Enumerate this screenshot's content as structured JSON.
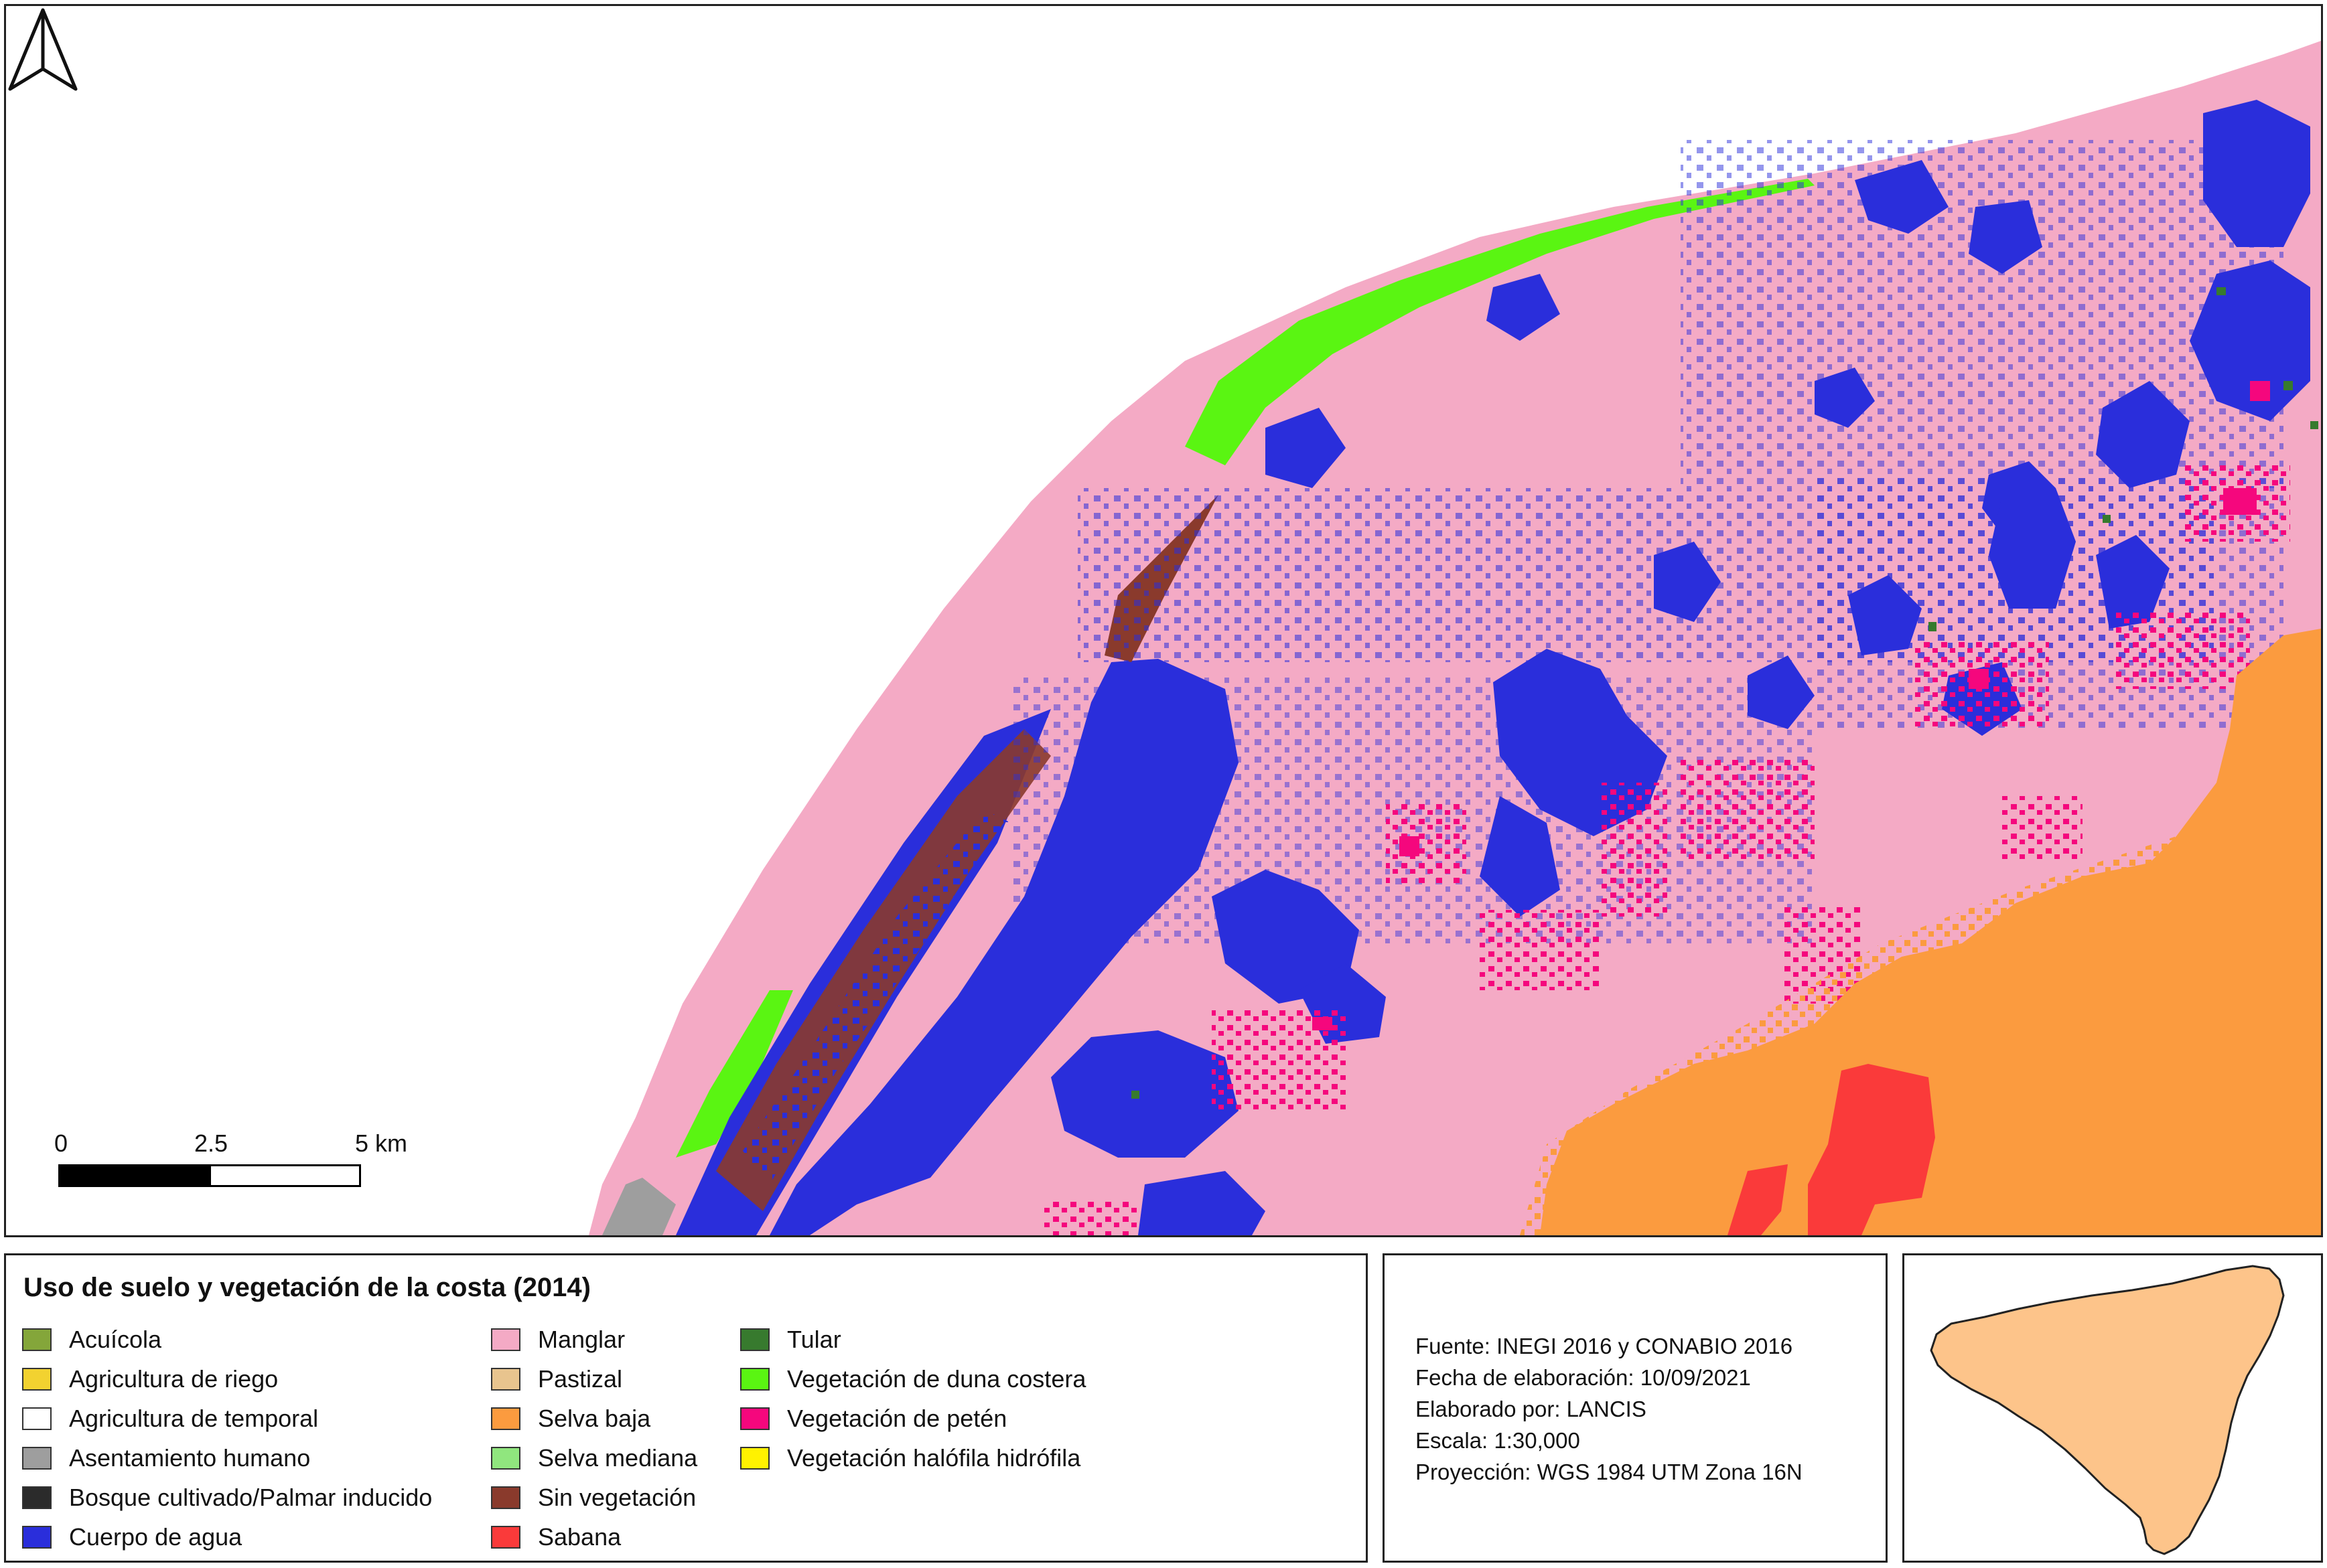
{
  "legend": {
    "title": "Uso de suelo y vegetación de la costa (2014)",
    "columns": [
      [
        {
          "label": "Acuícola",
          "color": "#84a63a"
        },
        {
          "label": "Agricultura de riego",
          "color": "#f2d230"
        },
        {
          "label": "Agricultura de temporal",
          "color": "#ffffff"
        },
        {
          "label": "Asentamiento humano",
          "color": "#9e9e9e"
        },
        {
          "label": "Bosque cultivado/Palmar inducido",
          "color": "#2b2b2b"
        },
        {
          "label": "Cuerpo de agua",
          "color": "#2a2edb"
        }
      ],
      [
        {
          "label": "Manglar",
          "color": "#f4aac5"
        },
        {
          "label": "Pastizal",
          "color": "#e8c48e"
        },
        {
          "label": "Selva baja",
          "color": "#fb9b3f"
        },
        {
          "label": "Selva mediana",
          "color": "#90e67e"
        },
        {
          "label": "Sin vegetación",
          "color": "#8a3a2c"
        },
        {
          "label": "Sabana",
          "color": "#fa3a3a"
        }
      ],
      [
        {
          "label": "Tular",
          "color": "#377a2e"
        },
        {
          "label": "Vegetación de duna costera",
          "color": "#5af512"
        },
        {
          "label": "Vegetación de petén",
          "color": "#f5077d"
        },
        {
          "label": "Vegetación halófila hidrófila",
          "color": "#fff200"
        }
      ]
    ]
  },
  "info": {
    "source": "Fuente: INEGI 2016 y CONABIO 2016",
    "date": "Fecha de elaboración: 10/09/2021",
    "author": "Elaborado por: LANCIS",
    "scale": "Escala: 1:30,000",
    "projection": "Proyección: WGS 1984 UTM Zona 16N"
  },
  "scalebar": {
    "labels": [
      "0",
      "2.5",
      "5 km"
    ]
  },
  "north_arrow_icon": "north-arrow-icon",
  "locator": {
    "fill": "#fdc48a",
    "stroke": "#222222"
  },
  "colors": {
    "sea": "#ffffff",
    "frame": "#222222"
  }
}
